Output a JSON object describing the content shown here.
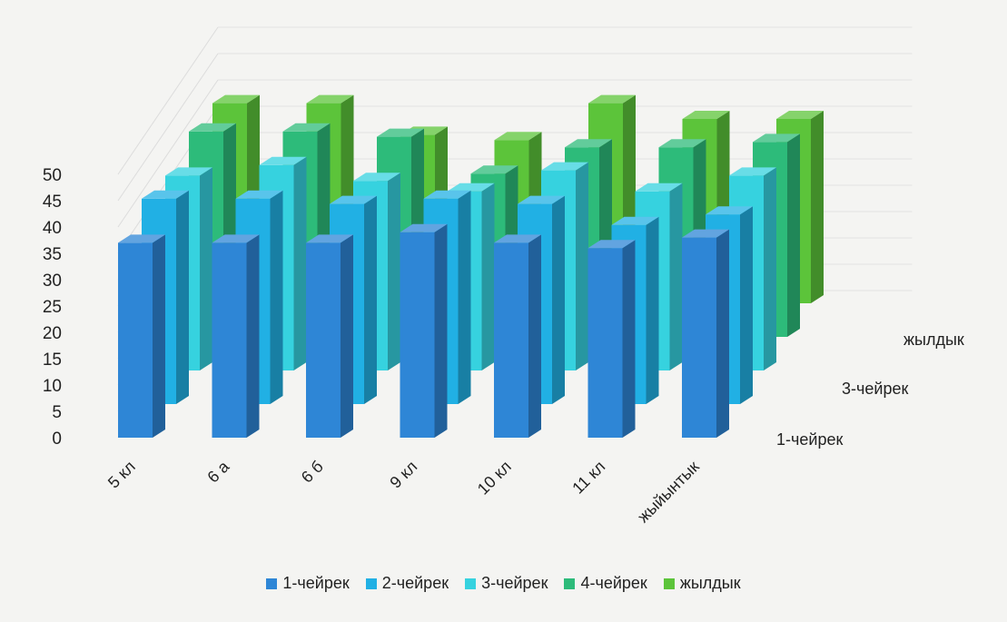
{
  "chart_data": {
    "type": "bar",
    "title": "",
    "xlabel": "",
    "ylabel": "",
    "ylim": [
      0,
      50
    ],
    "yticks": [
      "0",
      "5",
      "10",
      "15",
      "20",
      "25",
      "30",
      "35",
      "40",
      "45",
      "50"
    ],
    "categories": [
      "5 кл",
      "6 а",
      "6 б",
      "9 кл",
      "10 кл",
      "11 кл",
      "жыйынтык"
    ],
    "depth_labels": [
      "1-чейрек",
      "3-чейрек",
      "жылдык"
    ],
    "series": [
      {
        "name": "1-чейрек",
        "color": "#2e86d6",
        "values": [
          37,
          37,
          37,
          39,
          37,
          36,
          38
        ]
      },
      {
        "name": "2-чейрек",
        "color": "#21b0e4",
        "values": [
          39,
          39,
          38,
          39,
          38,
          34,
          36
        ]
      },
      {
        "name": "3-чейрек",
        "color": "#36d2df",
        "values": [
          37,
          39,
          36,
          34,
          38,
          34,
          37
        ]
      },
      {
        "name": "4-чейрек",
        "color": "#2dbb7a",
        "values": [
          39,
          39,
          38,
          31,
          36,
          36,
          37
        ]
      },
      {
        "name": "жылдык",
        "color": "#5cc43a",
        "values": [
          38,
          38,
          32,
          31,
          38,
          35,
          35
        ]
      }
    ],
    "legend_position": "bottom",
    "grid": true
  }
}
